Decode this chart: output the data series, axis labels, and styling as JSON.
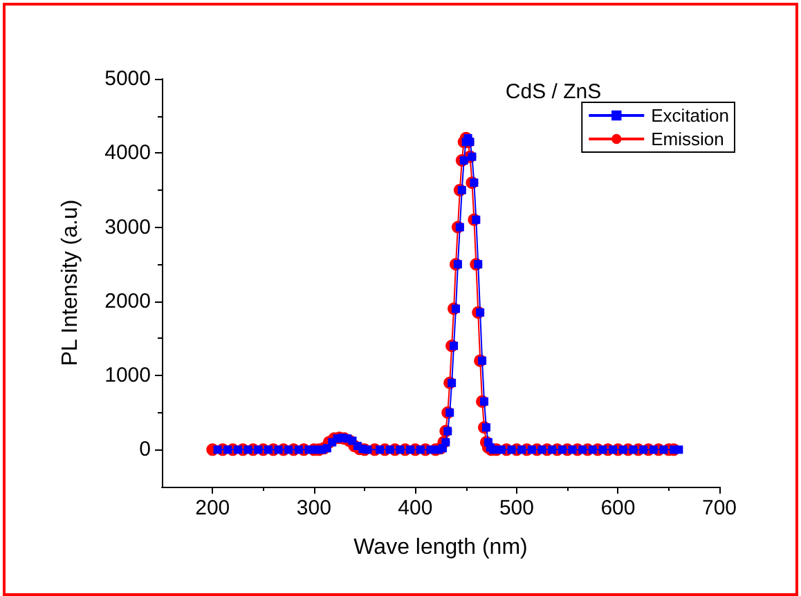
{
  "chart_data": {
    "type": "line",
    "title": "CdS / ZnS",
    "xlabel": "Wave length (nm)",
    "ylabel": "PL Intensity (a.u)",
    "xlim": [
      150,
      700
    ],
    "xticks": [
      200,
      300,
      400,
      500,
      600,
      700
    ],
    "ylim": [
      -500,
      5000
    ],
    "yticks": [
      0,
      1000,
      2000,
      3000,
      4000,
      5000
    ],
    "grid": false,
    "legend": "top right",
    "series": [
      {
        "name": "Excitation",
        "color": "#0000ff",
        "marker": "square",
        "x": [
          205,
          215,
          225,
          235,
          245,
          255,
          265,
          275,
          285,
          295,
          303,
          308,
          313,
          318,
          323,
          328,
          333,
          338,
          343,
          348,
          353,
          365,
          375,
          385,
          395,
          405,
          415,
          423,
          427,
          430,
          432,
          434,
          436,
          438,
          440,
          442,
          444,
          446,
          448,
          450,
          452,
          454,
          456,
          458,
          460,
          462,
          464,
          466,
          468,
          470,
          472,
          474,
          477,
          485,
          495,
          505,
          515,
          525,
          535,
          545,
          555,
          565,
          575,
          585,
          595,
          605,
          615,
          625,
          635,
          645,
          655,
          660
        ],
        "values": [
          0,
          0,
          0,
          0,
          0,
          0,
          0,
          0,
          0,
          0,
          0,
          0,
          20,
          100,
          150,
          160,
          150,
          120,
          50,
          10,
          0,
          0,
          0,
          0,
          0,
          0,
          0,
          0,
          20,
          100,
          250,
          500,
          900,
          1400,
          1900,
          2500,
          3000,
          3500,
          3900,
          4150,
          4200,
          4150,
          3950,
          3600,
          3100,
          2500,
          1850,
          1200,
          650,
          300,
          100,
          30,
          0,
          0,
          0,
          0,
          0,
          0,
          0,
          0,
          0,
          0,
          0,
          0,
          0,
          0,
          0,
          0,
          0,
          0,
          0,
          0
        ]
      },
      {
        "name": "Emission",
        "color": "#ff0000",
        "marker": "circle",
        "x": [
          200,
          210,
          220,
          230,
          240,
          250,
          260,
          270,
          280,
          290,
          300,
          305,
          310,
          315,
          320,
          325,
          330,
          335,
          340,
          345,
          350,
          360,
          370,
          380,
          390,
          400,
          410,
          420,
          425,
          428,
          430,
          432,
          434,
          436,
          438,
          440,
          442,
          444,
          446,
          448,
          450,
          452,
          454,
          456,
          458,
          460,
          462,
          464,
          466,
          468,
          470,
          472,
          475,
          480,
          490,
          500,
          510,
          520,
          530,
          540,
          550,
          560,
          570,
          580,
          590,
          600,
          610,
          620,
          630,
          640,
          650,
          655
        ],
        "values": [
          0,
          0,
          0,
          0,
          0,
          0,
          0,
          0,
          0,
          0,
          0,
          0,
          20,
          100,
          150,
          160,
          150,
          120,
          50,
          10,
          0,
          0,
          0,
          0,
          0,
          0,
          0,
          0,
          20,
          100,
          250,
          500,
          900,
          1400,
          1900,
          2500,
          3000,
          3500,
          3900,
          4150,
          4200,
          4150,
          3950,
          3600,
          3100,
          2500,
          1850,
          1200,
          650,
          300,
          100,
          30,
          0,
          0,
          0,
          0,
          0,
          0,
          0,
          0,
          0,
          0,
          0,
          0,
          0,
          0,
          0,
          0,
          0,
          0,
          0,
          0
        ]
      }
    ]
  }
}
